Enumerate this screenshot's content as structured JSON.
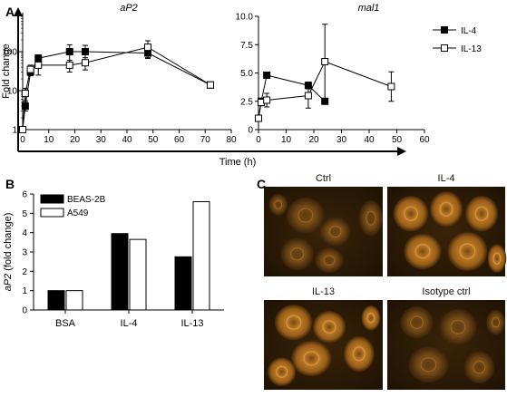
{
  "panels": {
    "A": "A",
    "B": "B",
    "C": "C"
  },
  "chart_data": [
    {
      "type": "line",
      "title": "aP2",
      "xlabel": "Time (h)",
      "ylabel": "Fold change",
      "yscale": "log",
      "ylim": [
        1,
        1000
      ],
      "xlim": [
        0,
        80
      ],
      "xticks": [
        0,
        10,
        20,
        30,
        40,
        50,
        60,
        70,
        80
      ],
      "yticks": [
        1,
        10,
        100
      ],
      "series": [
        {
          "name": "IL-4",
          "marker": "filled-square",
          "x": [
            0,
            1,
            3,
            6,
            18,
            24,
            48,
            72
          ],
          "y": [
            1,
            4,
            30,
            68,
            100,
            100,
            92,
            14
          ],
          "err": [
            0,
            1,
            6,
            15,
            50,
            45,
            25,
            2
          ]
        },
        {
          "name": "IL-13",
          "marker": "open-square",
          "x": [
            0,
            1,
            3,
            6,
            18,
            24,
            48,
            72
          ],
          "y": [
            1,
            8.5,
            35,
            45,
            45,
            52,
            130,
            14
          ],
          "err": [
            0,
            3,
            10,
            20,
            15,
            18,
            60,
            2
          ]
        }
      ]
    },
    {
      "type": "line",
      "title": "mal1",
      "xlabel": "Time (h)",
      "ylim": [
        0,
        10
      ],
      "xlim": [
        0,
        60
      ],
      "xticks": [
        0,
        10,
        20,
        30,
        40,
        50,
        60
      ],
      "yticks": [
        0,
        2.5,
        5.0,
        7.5,
        10.0
      ],
      "ytick_labels": [
        "0",
        "2.5",
        "5.0",
        "7.5",
        "10.0"
      ],
      "series": [
        {
          "name": "IL-4",
          "marker": "filled-square",
          "x": [
            0,
            1,
            3,
            18,
            24
          ],
          "y": [
            1,
            2.5,
            4.8,
            3.9,
            2.5
          ],
          "err": [
            0,
            0,
            0,
            0.3,
            0
          ]
        },
        {
          "name": "IL-13",
          "marker": "open-square",
          "x": [
            0,
            1,
            3,
            18,
            24,
            48
          ],
          "y": [
            1,
            2.4,
            2.6,
            3.0,
            6.0,
            3.8
          ],
          "err": [
            0,
            0.3,
            0.6,
            1.1,
            3.3,
            1.3
          ]
        }
      ]
    },
    {
      "type": "bar",
      "ylabel": "aP2 (fold change)",
      "ylabel_italic": "aP2",
      "ylabel_rest": " (fold change)",
      "categories": [
        "BSA",
        "IL-4",
        "IL-13"
      ],
      "ylim": [
        0,
        6
      ],
      "yticks": [
        0,
        1,
        2,
        3,
        4,
        5,
        6
      ],
      "series": [
        {
          "name": "BEAS-2B",
          "values": [
            1.0,
            3.95,
            2.75
          ],
          "color": "#000000"
        },
        {
          "name": "A549",
          "values": [
            1.0,
            3.65,
            5.6
          ],
          "color": "#ffffff"
        }
      ]
    }
  ],
  "micrographs": [
    {
      "label": "Ctrl",
      "intensity": "low"
    },
    {
      "label": "IL-4",
      "intensity": "high"
    },
    {
      "label": "IL-13",
      "intensity": "high"
    },
    {
      "label": "Isotype ctrl",
      "intensity": "low"
    }
  ],
  "colors": {
    "axis": "#000000",
    "micro_bg": "#2a1a06",
    "micro_cell": "#b8731f"
  }
}
